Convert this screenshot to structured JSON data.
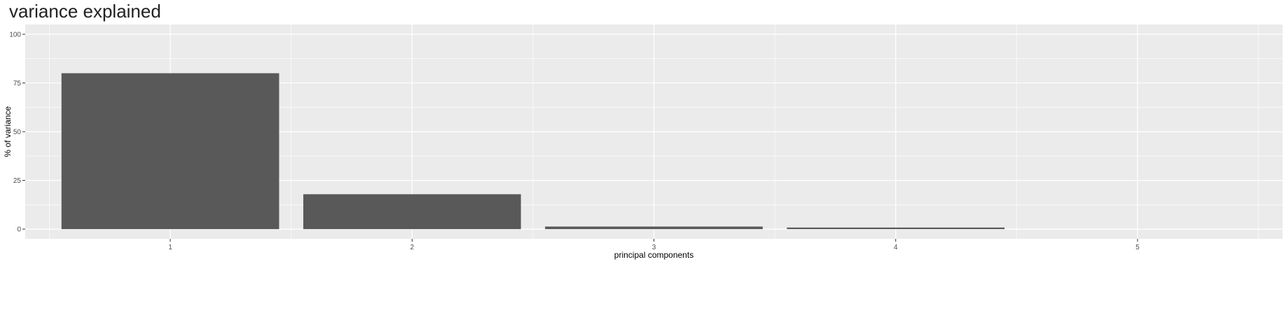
{
  "chart_data": {
    "type": "bar",
    "title": "variance explained",
    "xlabel": "principal components",
    "ylabel": "% of variance",
    "categories": [
      "1",
      "2",
      "3",
      "4",
      "5"
    ],
    "values": [
      80.0,
      17.9,
      1.3,
      0.8,
      0.0
    ],
    "ylim": [
      0,
      100
    ],
    "yticks": [
      "0",
      "25",
      "50",
      "75",
      "100"
    ],
    "grid": true,
    "colors": {
      "bar": "#595959",
      "panel": "#ebebeb",
      "grid": "#ffffff"
    }
  }
}
